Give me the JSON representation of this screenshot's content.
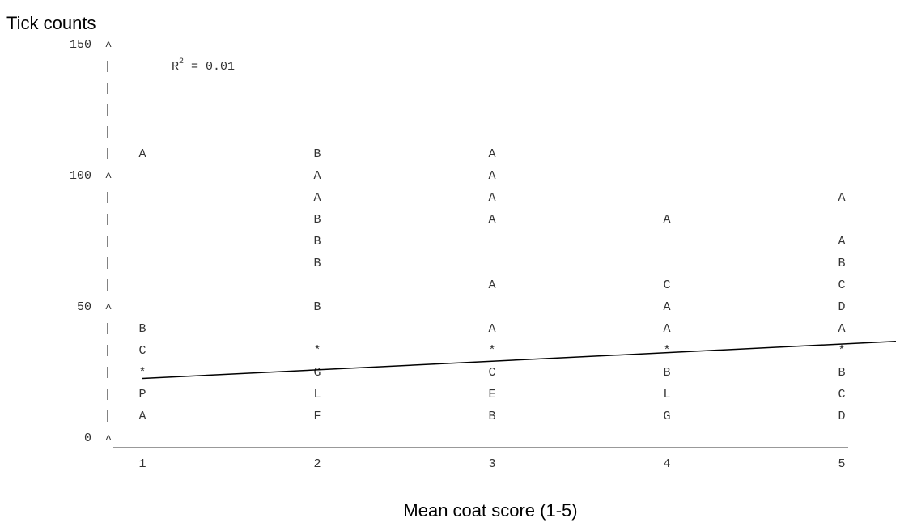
{
  "chart_data": {
    "type": "scatter",
    "title": "Tick counts",
    "x_label": "Mean coat score (1-5)",
    "annotation": {
      "base": "R",
      "superscript": "2",
      "text": "= 0.01"
    },
    "xlim": [
      1,
      5
    ],
    "xticks": [
      1,
      2,
      3,
      4,
      5
    ],
    "ylim": [
      0,
      150
    ],
    "yticks": [
      0,
      50,
      100,
      150
    ],
    "points": [
      {
        "x": 1,
        "y": 108.3,
        "label": "A"
      },
      {
        "x": 1,
        "y": 41.7,
        "label": "B"
      },
      {
        "x": 1,
        "y": 33.3,
        "label": "C"
      },
      {
        "x": 1,
        "y": 25,
        "label": "*"
      },
      {
        "x": 1,
        "y": 16.7,
        "label": "P"
      },
      {
        "x": 1,
        "y": 8.3,
        "label": "A"
      },
      {
        "x": 2,
        "y": 108.3,
        "label": "B"
      },
      {
        "x": 2,
        "y": 100,
        "label": "A"
      },
      {
        "x": 2,
        "y": 91.7,
        "label": "A"
      },
      {
        "x": 2,
        "y": 83.3,
        "label": "B"
      },
      {
        "x": 2,
        "y": 75,
        "label": "B"
      },
      {
        "x": 2,
        "y": 66.7,
        "label": "B"
      },
      {
        "x": 2,
        "y": 50,
        "label": "B"
      },
      {
        "x": 2,
        "y": 33.3,
        "label": "*"
      },
      {
        "x": 2,
        "y": 25,
        "label": "G"
      },
      {
        "x": 2,
        "y": 16.7,
        "label": "L"
      },
      {
        "x": 2,
        "y": 8.3,
        "label": "F"
      },
      {
        "x": 3,
        "y": 108.3,
        "label": "A"
      },
      {
        "x": 3,
        "y": 100,
        "label": "A"
      },
      {
        "x": 3,
        "y": 91.7,
        "label": "A"
      },
      {
        "x": 3,
        "y": 83.3,
        "label": "A"
      },
      {
        "x": 3,
        "y": 58.3,
        "label": "A"
      },
      {
        "x": 3,
        "y": 41.7,
        "label": "A"
      },
      {
        "x": 3,
        "y": 33.3,
        "label": "*"
      },
      {
        "x": 3,
        "y": 25,
        "label": "C"
      },
      {
        "x": 3,
        "y": 16.7,
        "label": "E"
      },
      {
        "x": 3,
        "y": 8.3,
        "label": "B"
      },
      {
        "x": 4,
        "y": 83.3,
        "label": "A"
      },
      {
        "x": 4,
        "y": 58.3,
        "label": "C"
      },
      {
        "x": 4,
        "y": 50,
        "label": "A"
      },
      {
        "x": 4,
        "y": 41.7,
        "label": "A"
      },
      {
        "x": 4,
        "y": 33.3,
        "label": "*"
      },
      {
        "x": 4,
        "y": 25,
        "label": "B"
      },
      {
        "x": 4,
        "y": 16.7,
        "label": "L"
      },
      {
        "x": 4,
        "y": 8.3,
        "label": "G"
      },
      {
        "x": 5,
        "y": 91.7,
        "label": "A"
      },
      {
        "x": 5,
        "y": 75,
        "label": "A"
      },
      {
        "x": 5,
        "y": 66.7,
        "label": "B"
      },
      {
        "x": 5,
        "y": 58.3,
        "label": "C"
      },
      {
        "x": 5,
        "y": 50,
        "label": "D"
      },
      {
        "x": 5,
        "y": 41.7,
        "label": "A"
      },
      {
        "x": 5,
        "y": 33.3,
        "label": "*"
      },
      {
        "x": 5,
        "y": 25,
        "label": "B"
      },
      {
        "x": 5,
        "y": 16.7,
        "label": "C"
      },
      {
        "x": 5,
        "y": 8.3,
        "label": "D"
      }
    ],
    "fit": {
      "x": [
        1,
        5.31
      ],
      "y": [
        22.7,
        36.8
      ]
    }
  }
}
